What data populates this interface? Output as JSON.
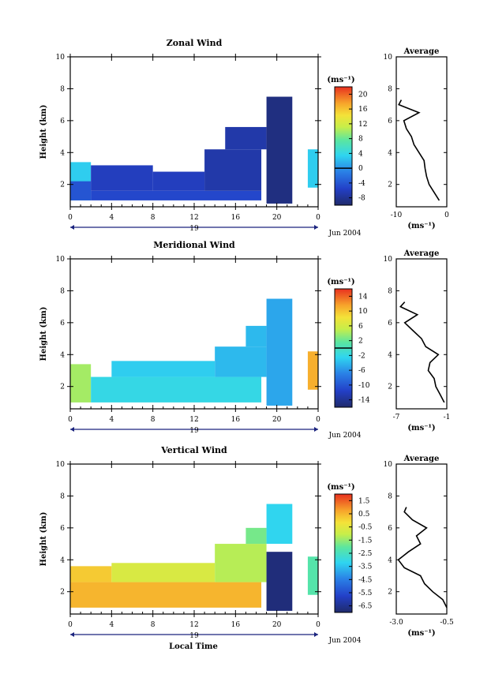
{
  "figure": {
    "xlabel": "Local Time",
    "date_label": "Jun 2004",
    "day_label": "19",
    "avg_title": "Average",
    "height_label": "Height (km)",
    "unit_label": "(ms⁻¹)"
  },
  "chart_data": [
    {
      "type": "heatmap",
      "title": "Zonal Wind",
      "xlabel": "Local Time",
      "ylabel": "Height (km)",
      "x_ticks": [
        "0",
        "4",
        "8",
        "12",
        "16",
        "20",
        "0"
      ],
      "y_ticks": [
        "2",
        "4",
        "6",
        "8",
        "10"
      ],
      "xlim": [
        0,
        24
      ],
      "ylim": [
        0.6,
        10
      ],
      "colorbar": {
        "label": "(ms⁻¹)",
        "ticks": [
          "-8",
          "-4",
          "0",
          "4",
          "8",
          "12",
          "16",
          "20"
        ],
        "range": [
          -10,
          22
        ],
        "zero_line": 0
      },
      "fields": [
        {
          "x": [
            0,
            2
          ],
          "y": [
            1.0,
            3.4
          ],
          "value": 3
        },
        {
          "x": [
            0,
            2
          ],
          "y": [
            1.0,
            2.2
          ],
          "value": -4
        },
        {
          "x": [
            2,
            18.5
          ],
          "y": [
            1.0,
            1.6
          ],
          "value": -5
        },
        {
          "x": [
            2,
            8
          ],
          "y": [
            1.6,
            3.2
          ],
          "value": -6
        },
        {
          "x": [
            8,
            13
          ],
          "y": [
            1.6,
            2.8
          ],
          "value": -6
        },
        {
          "x": [
            13,
            18.5
          ],
          "y": [
            1.6,
            4.2
          ],
          "value": -7
        },
        {
          "x": [
            15,
            19
          ],
          "y": [
            4.2,
            5.6
          ],
          "value": -7
        },
        {
          "x": [
            19,
            21.5
          ],
          "y": [
            0.8,
            7.5
          ],
          "value": -9
        },
        {
          "x": [
            23,
            24
          ],
          "y": [
            1.8,
            4.2
          ],
          "value": 3
        }
      ],
      "profile": {
        "title": "Average",
        "xlabel": "(ms⁻¹)",
        "x_ticks": [
          "-10",
          "0"
        ],
        "xlim": [
          -10,
          0
        ],
        "heights": [
          1.0,
          1.5,
          2.0,
          2.5,
          3.0,
          3.5,
          4.0,
          4.5,
          5.0,
          5.5,
          6.0,
          6.5,
          7.0,
          7.3
        ],
        "values": [
          -1.5,
          -2.5,
          -3.5,
          -4.0,
          -4.3,
          -4.5,
          -5.5,
          -6.5,
          -7.0,
          -8.0,
          -8.5,
          -5.5,
          -9.5,
          -9.0
        ]
      }
    },
    {
      "type": "heatmap",
      "title": "Meridional Wind",
      "xlabel": "Local Time",
      "ylabel": "Height (km)",
      "x_ticks": [
        "0",
        "4",
        "8",
        "12",
        "16",
        "20",
        "0"
      ],
      "y_ticks": [
        "2",
        "4",
        "6",
        "8",
        "10"
      ],
      "xlim": [
        0,
        24
      ],
      "ylim": [
        0.6,
        10
      ],
      "colorbar": {
        "label": "(ms⁻¹)",
        "ticks": [
          "-14",
          "-10",
          "-6",
          "-2",
          "2",
          "6",
          "10",
          "14"
        ],
        "range": [
          -16,
          16
        ],
        "zero_line": 0
      },
      "fields": [
        {
          "x": [
            0,
            2
          ],
          "y": [
            1.0,
            3.4
          ],
          "value": 4
        },
        {
          "x": [
            2,
            18.5
          ],
          "y": [
            1.0,
            2.6
          ],
          "value": -2
        },
        {
          "x": [
            4,
            14
          ],
          "y": [
            2.6,
            3.6
          ],
          "value": -3
        },
        {
          "x": [
            14,
            19
          ],
          "y": [
            2.6,
            4.5
          ],
          "value": -4
        },
        {
          "x": [
            17,
            19
          ],
          "y": [
            4.5,
            5.8
          ],
          "value": -4
        },
        {
          "x": [
            19,
            21.5
          ],
          "y": [
            0.8,
            7.5
          ],
          "value": -5
        },
        {
          "x": [
            23,
            24
          ],
          "y": [
            1.8,
            4.2
          ],
          "value": 11
        }
      ],
      "profile": {
        "title": "Average",
        "xlabel": "(ms⁻¹)",
        "x_ticks": [
          "-7",
          "-1"
        ],
        "xlim": [
          -7,
          -1
        ],
        "heights": [
          1.0,
          1.5,
          2.0,
          2.5,
          3.0,
          3.5,
          4.0,
          4.5,
          5.0,
          5.5,
          6.0,
          6.5,
          7.0,
          7.3
        ],
        "values": [
          -1.3,
          -1.8,
          -2.3,
          -2.5,
          -3.2,
          -3.0,
          -2.0,
          -3.5,
          -4.0,
          -5.0,
          -6.0,
          -4.5,
          -6.5,
          -6.0
        ]
      }
    },
    {
      "type": "heatmap",
      "title": "Vertical Wind",
      "xlabel": "Local Time",
      "ylabel": "Height (km)",
      "x_ticks": [
        "0",
        "4",
        "8",
        "12",
        "16",
        "20",
        "0"
      ],
      "y_ticks": [
        "2",
        "4",
        "6",
        "8",
        "10"
      ],
      "xlim": [
        0,
        24
      ],
      "ylim": [
        0.6,
        10
      ],
      "colorbar": {
        "label": "(ms⁻¹)",
        "ticks": [
          "-6.5",
          "-5.5",
          "-4.5",
          "-3.5",
          "-2.5",
          "-1.5",
          "-0.5",
          "0.5",
          "1.5"
        ],
        "range": [
          -7,
          2
        ],
        "zero_line": null
      },
      "fields": [
        {
          "x": [
            0,
            18.5
          ],
          "y": [
            1.0,
            2.6
          ],
          "value": 0.5
        },
        {
          "x": [
            0,
            4
          ],
          "y": [
            2.6,
            3.6
          ],
          "value": 0.2
        },
        {
          "x": [
            4,
            14
          ],
          "y": [
            2.6,
            3.8
          ],
          "value": -0.7
        },
        {
          "x": [
            14,
            19
          ],
          "y": [
            2.6,
            5.0
          ],
          "value": -1.2
        },
        {
          "x": [
            17,
            19
          ],
          "y": [
            5.0,
            6.0
          ],
          "value": -1.8
        },
        {
          "x": [
            19,
            21.5
          ],
          "y": [
            0.8,
            4.5
          ],
          "value": -6.8
        },
        {
          "x": [
            19,
            21.5
          ],
          "y": [
            5.0,
            7.5
          ],
          "value": -3.2
        },
        {
          "x": [
            23,
            24
          ],
          "y": [
            1.8,
            4.2
          ],
          "value": -2.2
        }
      ],
      "profile": {
        "title": "Average",
        "xlabel": "(ms⁻¹)",
        "x_ticks": [
          "-3.0",
          "-0.5"
        ],
        "xlim": [
          -3.0,
          -0.5
        ],
        "heights": [
          1.0,
          1.5,
          2.0,
          2.5,
          3.0,
          3.5,
          4.0,
          4.5,
          5.0,
          5.5,
          6.0,
          6.5,
          7.0,
          7.3
        ],
        "values": [
          -0.5,
          -0.7,
          -1.2,
          -1.6,
          -1.8,
          -2.6,
          -2.9,
          -2.4,
          -1.8,
          -2.0,
          -1.5,
          -2.2,
          -2.6,
          -2.5
        ]
      }
    }
  ]
}
